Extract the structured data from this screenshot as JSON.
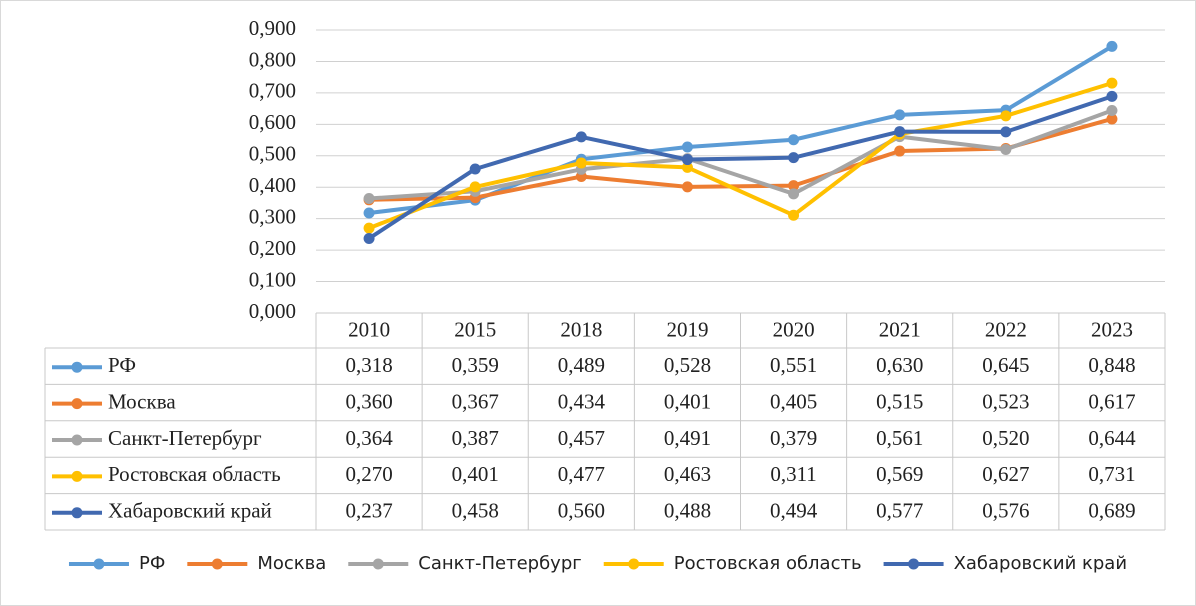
{
  "chart_data": {
    "type": "line",
    "categories": [
      "2010",
      "2015",
      "2018",
      "2019",
      "2020",
      "2021",
      "2022",
      "2023"
    ],
    "ylim": [
      0,
      0.9
    ],
    "yticks": [
      {
        "value": 0,
        "label": "0,000"
      },
      {
        "value": 0.1,
        "label": "0,100"
      },
      {
        "value": 0.2,
        "label": "0,200"
      },
      {
        "value": 0.3,
        "label": "0,300"
      },
      {
        "value": 0.4,
        "label": "0,400"
      },
      {
        "value": 0.5,
        "label": "0,500"
      },
      {
        "value": 0.6,
        "label": "0,600"
      },
      {
        "value": 0.7,
        "label": "0,700"
      },
      {
        "value": 0.8,
        "label": "0,800"
      },
      {
        "value": 0.9,
        "label": "0,900"
      }
    ],
    "grid": true,
    "legend": "bottom",
    "series": [
      {
        "name": "РФ",
        "color": "#5b9bd5",
        "values": [
          0.318,
          0.359,
          0.489,
          0.528,
          0.551,
          0.63,
          0.645,
          0.848
        ],
        "value_labels": [
          "0,318",
          "0,359",
          "0,489",
          "0,528",
          "0,551",
          "0,630",
          "0,645",
          "0,848"
        ]
      },
      {
        "name": "Москва",
        "color": "#ed7d31",
        "values": [
          0.36,
          0.367,
          0.434,
          0.401,
          0.405,
          0.515,
          0.523,
          0.617
        ],
        "value_labels": [
          "0,360",
          "0,367",
          "0,434",
          "0,401",
          "0,405",
          "0,515",
          "0,523",
          "0,617"
        ]
      },
      {
        "name": "Санкт-Петербург",
        "color": "#a5a5a5",
        "values": [
          0.364,
          0.387,
          0.457,
          0.491,
          0.379,
          0.561,
          0.52,
          0.644
        ],
        "value_labels": [
          "0,364",
          "0,387",
          "0,457",
          "0,491",
          "0,379",
          "0,561",
          "0,520",
          "0,644"
        ]
      },
      {
        "name": "Ростовская область",
        "color": "#ffc000",
        "values": [
          0.27,
          0.401,
          0.477,
          0.463,
          0.311,
          0.569,
          0.627,
          0.731
        ],
        "value_labels": [
          "0,270",
          "0,401",
          "0,477",
          "0,463",
          "0,311",
          "0,569",
          "0,627",
          "0,731"
        ]
      },
      {
        "name": "Хабаровский край",
        "color": "#4169b0",
        "values": [
          0.237,
          0.458,
          0.56,
          0.488,
          0.494,
          0.577,
          0.576,
          0.689
        ],
        "value_labels": [
          "0,237",
          "0,458",
          "0,560",
          "0,488",
          "0,494",
          "0,577",
          "0,576",
          "0,689"
        ]
      }
    ]
  }
}
